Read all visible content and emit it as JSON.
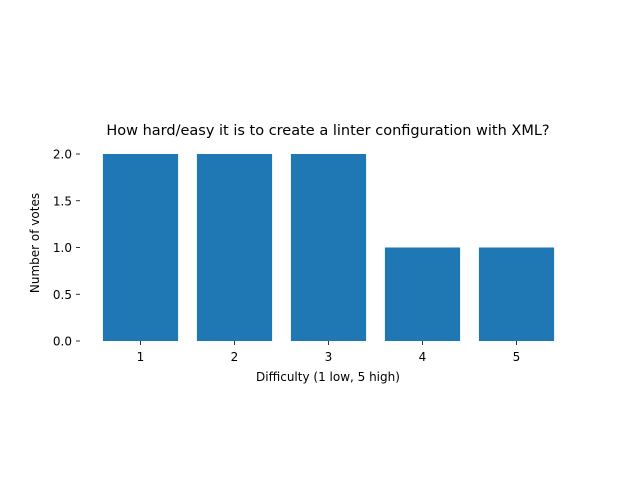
{
  "chart_data": {
    "type": "bar",
    "title": "How hard/easy it is to create a linter configuration with XML?",
    "xlabel": "Difficulty (1 low, 5 high)",
    "ylabel": "Number of votes",
    "categories": [
      "1",
      "2",
      "3",
      "4",
      "5"
    ],
    "values": [
      2,
      2,
      2,
      1,
      1
    ],
    "ylim": [
      0,
      2.0
    ],
    "yticks": [
      "0.0",
      "0.5",
      "1.0",
      "1.5",
      "2.0"
    ],
    "ytick_values": [
      0,
      0.5,
      1.0,
      1.5,
      2.0
    ],
    "grid": false,
    "frame": false,
    "bar_color": "#1f77b4"
  }
}
